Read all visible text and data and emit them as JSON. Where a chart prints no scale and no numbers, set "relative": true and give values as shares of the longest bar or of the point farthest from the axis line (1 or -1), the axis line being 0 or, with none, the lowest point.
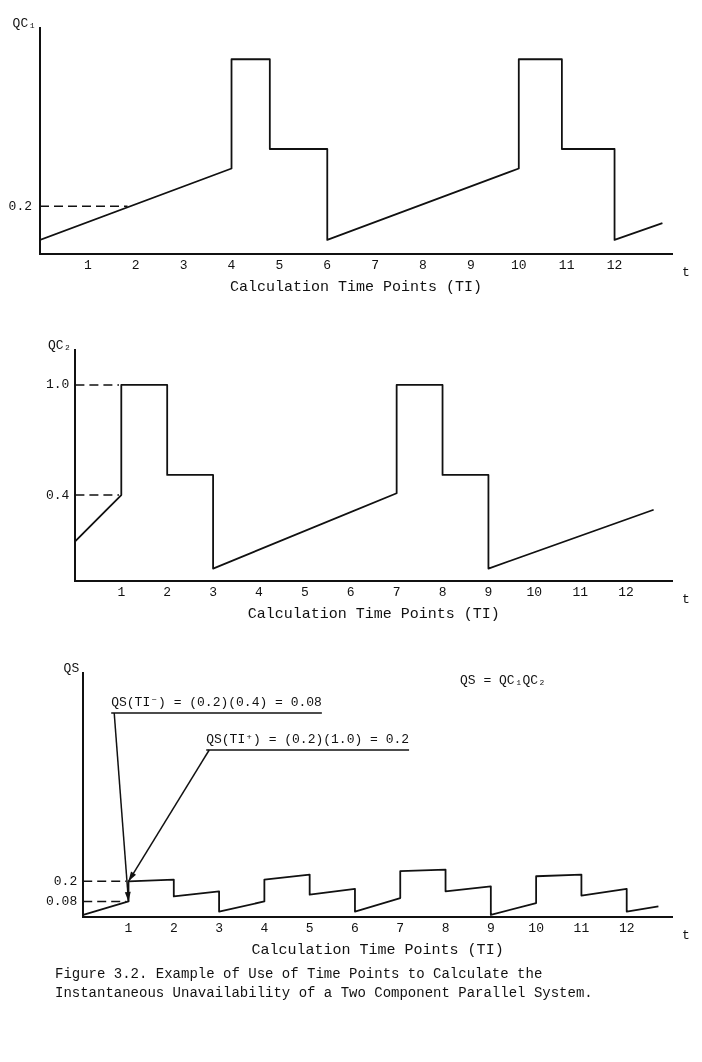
{
  "chart_data": [
    {
      "type": "line",
      "ylabel": "QC₁",
      "xlabel": "Calculation Time Points (TI)",
      "color": "#111111",
      "relative": true,
      "x": [
        0,
        4,
        4,
        4.8,
        4.8,
        6,
        6,
        10,
        10,
        10.9,
        10.9,
        12,
        12,
        13
      ],
      "values": [
        0.074,
        0.44,
        1,
        1,
        0.54,
        0.54,
        0.074,
        0.44,
        1,
        1,
        0.54,
        0.54,
        0.074,
        0.16
      ],
      "xlim": [
        0,
        13.2
      ],
      "xticks": [
        1,
        2,
        3,
        4,
        5,
        6,
        7,
        8,
        9,
        10,
        11,
        12
      ],
      "ref_lines": [
        {
          "axis": "y",
          "value": 0.247,
          "label": "0.2",
          "line_style": "dashed"
        }
      ],
      "annotations": [
        "t"
      ]
    },
    {
      "type": "line",
      "ylabel": "QC₂",
      "xlabel": "Calculation Time Points (TI)",
      "series": [
        {
          "color": "#111111",
          "x": [
            0,
            1,
            1,
            2,
            2,
            3,
            3,
            7,
            7,
            8,
            8,
            9,
            9,
            12.6
          ],
          "values": [
            0.15,
            0.4,
            1.0,
            1.0,
            0.51,
            0.51,
            0.0,
            0.41,
            1.0,
            1.0,
            0.51,
            0.51,
            0.0,
            0.32
          ]
        },
        {
          "color": "#111111",
          "line_style": "dashed",
          "x": [
            0,
            0.95
          ],
          "values": [
            1.0,
            1.0
          ]
        },
        {
          "color": "#111111",
          "line_style": "dashed",
          "x": [
            0,
            0.95
          ],
          "values": [
            0.4,
            0.4
          ]
        }
      ],
      "xlim": [
        0,
        13
      ],
      "ylim": [
        -0.07,
        1.19
      ],
      "xticks": [
        1,
        2,
        3,
        4,
        5,
        6,
        7,
        8,
        9,
        10,
        11,
        12
      ],
      "yticks": [
        {
          "value": 0.4,
          "label": "0.4"
        },
        {
          "value": 1.0,
          "label": "1.0"
        }
      ],
      "annotations": [
        "t"
      ]
    },
    {
      "type": "line",
      "ylabel": "QS",
      "xlabel": "Calculation Time Points (TI)",
      "series": [
        {
          "color": "#111111",
          "x": [
            0,
            1,
            1,
            2,
            2,
            3,
            3,
            4,
            4,
            5,
            5,
            6,
            6,
            7,
            7,
            8,
            8,
            9,
            9,
            10,
            10,
            11,
            11,
            12,
            12,
            12.7
          ],
          "values": [
            0.0,
            0.08,
            0.2,
            0.21,
            0.11,
            0.14,
            0.02,
            0.08,
            0.21,
            0.24,
            0.12,
            0.155,
            0.02,
            0.1,
            0.26,
            0.27,
            0.14,
            0.17,
            0.0,
            0.07,
            0.23,
            0.24,
            0.115,
            0.155,
            0.02,
            0.05
          ]
        },
        {
          "color": "#111111",
          "line_style": "dashed",
          "x": [
            0,
            0.95
          ],
          "values": [
            0.2,
            0.2
          ]
        },
        {
          "color": "#111111",
          "line_style": "dashed",
          "x": [
            0,
            0.95
          ],
          "values": [
            0.08,
            0.08
          ]
        }
      ],
      "xlim": [
        0,
        13
      ],
      "ylim": [
        -0.015,
        1.44
      ],
      "xticks": [
        1,
        2,
        3,
        4,
        5,
        6,
        7,
        8,
        9,
        10,
        11,
        12
      ],
      "yticks": [
        {
          "value": 0.08,
          "label": "0.08"
        },
        {
          "value": 0.2,
          "label": "0.2"
        }
      ],
      "annotations": [
        "t",
        "QS = QC₁QC₂",
        {
          "text": "QS(TI⁻) = (0.2)(0.4) = 0.08",
          "x": 1,
          "y": 0.08
        },
        {
          "text": "QS(TI⁺) = (0.2)(1.0) = 0.2",
          "x": 1,
          "y": 0.2
        },
        "Figure 3.2.  Example of Use of Time Points to Calculate the Instantaneous Unavailability of a Two Component Parallel System."
      ]
    }
  ]
}
